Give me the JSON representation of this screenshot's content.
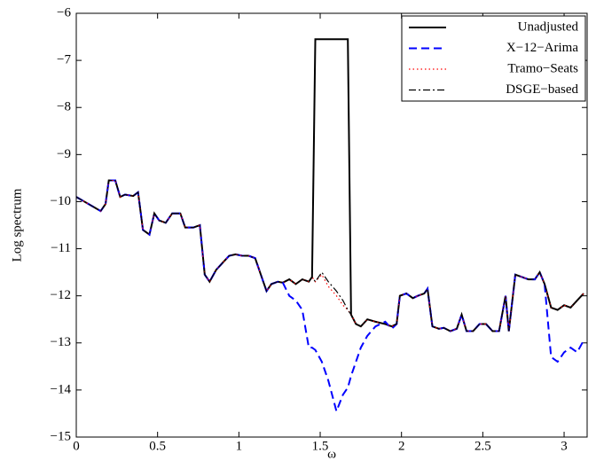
{
  "chart_data": {
    "type": "line",
    "xlabel": "ω",
    "ylabel": "Log spectrum",
    "xlim": [
      0,
      3.1416
    ],
    "ylim": [
      -15,
      -6
    ],
    "xticks": [
      0,
      0.5,
      1,
      1.5,
      2,
      2.5,
      3
    ],
    "yticks": [
      {
        "value": -15,
        "label": "−15"
      },
      {
        "value": -14,
        "label": "−14"
      },
      {
        "value": -13,
        "label": "−13"
      },
      {
        "value": -12,
        "label": "−12"
      },
      {
        "value": -11,
        "label": "−11"
      },
      {
        "value": -10,
        "label": "−10"
      },
      {
        "value": -9,
        "label": "−9"
      },
      {
        "value": -8,
        "label": "−8"
      },
      {
        "value": -7,
        "label": "−7"
      },
      {
        "value": -6,
        "label": "−6"
      }
    ],
    "legend": "upper right",
    "x": [
      0,
      0.05,
      0.1,
      0.15,
      0.18,
      0.2,
      0.24,
      0.27,
      0.3,
      0.35,
      0.38,
      0.41,
      0.45,
      0.48,
      0.51,
      0.55,
      0.59,
      0.64,
      0.67,
      0.72,
      0.76,
      0.79,
      0.82,
      0.86,
      0.9,
      0.94,
      0.98,
      1.02,
      1.06,
      1.1,
      1.14,
      1.17,
      1.2,
      1.24,
      1.27,
      1.31,
      1.35,
      1.39,
      1.43,
      1.45,
      1.47,
      1.51,
      1.55,
      1.6,
      1.64,
      1.67,
      1.69,
      1.72,
      1.75,
      1.79,
      1.84,
      1.9,
      1.94,
      1.97,
      1.99,
      2.03,
      2.07,
      2.1,
      2.14,
      2.16,
      2.19,
      2.23,
      2.26,
      2.3,
      2.34,
      2.37,
      2.4,
      2.44,
      2.48,
      2.52,
      2.56,
      2.6,
      2.64,
      2.66,
      2.7,
      2.74,
      2.78,
      2.82,
      2.85,
      2.88,
      2.92,
      2.96,
      3.0,
      3.04,
      3.08,
      3.12
    ],
    "series": [
      {
        "name": "Unadjusted",
        "color": "#000000",
        "style": "solid",
        "values": [
          -9.9,
          -10.0,
          -10.1,
          -10.2,
          -10.05,
          -9.55,
          -9.55,
          -9.9,
          -9.85,
          -9.88,
          -9.8,
          -10.6,
          -10.7,
          -10.25,
          -10.4,
          -10.45,
          -10.25,
          -10.25,
          -10.55,
          -10.55,
          -10.5,
          -11.55,
          -11.7,
          -11.45,
          -11.3,
          -11.15,
          -11.12,
          -11.15,
          -11.15,
          -11.2,
          -11.6,
          -11.9,
          -11.75,
          -11.7,
          -11.72,
          -11.65,
          -11.75,
          -11.65,
          -11.7,
          -11.6,
          -6.55,
          -6.55,
          -6.55,
          -6.55,
          -6.55,
          -6.55,
          -12.4,
          -12.6,
          -12.65,
          -12.5,
          -12.55,
          -12.6,
          -12.65,
          -12.6,
          -12.0,
          -11.95,
          -12.05,
          -12.0,
          -11.95,
          -11.85,
          -12.65,
          -12.7,
          -12.68,
          -12.75,
          -12.7,
          -12.4,
          -12.75,
          -12.75,
          -12.6,
          -12.6,
          -12.75,
          -12.75,
          -12.0,
          -12.75,
          -11.55,
          -11.6,
          -11.65,
          -11.65,
          -11.5,
          -11.75,
          -12.25,
          -12.3,
          -12.2,
          -12.25,
          -12.1,
          -11.95
        ]
      },
      {
        "name": "X−12−Arima",
        "color": "#0000ff",
        "style": "dashed",
        "values": [
          -9.9,
          -10.0,
          -10.1,
          -10.2,
          -10.05,
          -9.55,
          -9.55,
          -9.9,
          -9.85,
          -9.88,
          -9.8,
          -10.6,
          -10.7,
          -10.25,
          -10.4,
          -10.45,
          -10.25,
          -10.25,
          -10.55,
          -10.55,
          -10.5,
          -11.55,
          -11.7,
          -11.45,
          -11.3,
          -11.15,
          -11.12,
          -11.15,
          -11.15,
          -11.2,
          -11.6,
          -11.9,
          -11.75,
          -11.7,
          -11.72,
          -12.0,
          -12.1,
          -12.3,
          -13.1,
          -13.1,
          -13.15,
          -13.4,
          -13.8,
          -14.45,
          -14.1,
          -13.95,
          -13.7,
          -13.4,
          -13.1,
          -12.85,
          -12.65,
          -12.55,
          -12.7,
          -12.6,
          -12.0,
          -11.95,
          -12.05,
          -12.0,
          -11.95,
          -11.85,
          -12.65,
          -12.7,
          -12.68,
          -12.75,
          -12.7,
          -12.4,
          -12.75,
          -12.75,
          -12.6,
          -12.6,
          -12.75,
          -12.75,
          -12.0,
          -12.75,
          -11.55,
          -11.6,
          -11.65,
          -11.65,
          -11.5,
          -11.75,
          -13.3,
          -13.4,
          -13.2,
          -13.1,
          -13.2,
          -12.95
        ]
      },
      {
        "name": "Tramo−Seats",
        "color": "#ff0000",
        "style": "dotted",
        "values": [
          -9.9,
          -10.0,
          -10.1,
          -10.2,
          -10.05,
          -9.55,
          -9.55,
          -9.9,
          -9.85,
          -9.88,
          -9.8,
          -10.6,
          -10.7,
          -10.25,
          -10.4,
          -10.45,
          -10.25,
          -10.25,
          -10.55,
          -10.55,
          -10.5,
          -11.55,
          -11.7,
          -11.45,
          -11.3,
          -11.15,
          -11.12,
          -11.15,
          -11.15,
          -11.2,
          -11.6,
          -11.9,
          -11.75,
          -11.7,
          -11.72,
          -11.65,
          -11.75,
          -11.65,
          -11.7,
          -11.6,
          -11.7,
          -11.55,
          -11.8,
          -12.0,
          -12.2,
          -12.3,
          -12.4,
          -12.6,
          -12.65,
          -12.5,
          -12.55,
          -12.6,
          -12.65,
          -12.6,
          -12.0,
          -11.95,
          -12.05,
          -12.0,
          -11.95,
          -11.85,
          -12.65,
          -12.7,
          -12.68,
          -12.75,
          -12.7,
          -12.4,
          -12.75,
          -12.75,
          -12.6,
          -12.6,
          -12.75,
          -12.75,
          -12.0,
          -12.75,
          -11.55,
          -11.6,
          -11.65,
          -11.65,
          -11.5,
          -11.75,
          -12.25,
          -12.3,
          -12.2,
          -12.25,
          -12.1,
          -11.95
        ]
      },
      {
        "name": "DSGE−based",
        "color": "#000000",
        "style": "dashdot",
        "values": [
          -9.9,
          -10.0,
          -10.1,
          -10.2,
          -10.05,
          -9.55,
          -9.55,
          -9.9,
          -9.85,
          -9.88,
          -9.8,
          -10.6,
          -10.7,
          -10.25,
          -10.4,
          -10.45,
          -10.25,
          -10.25,
          -10.55,
          -10.55,
          -10.5,
          -11.55,
          -11.7,
          -11.45,
          -11.3,
          -11.15,
          -11.12,
          -11.15,
          -11.15,
          -11.2,
          -11.6,
          -11.9,
          -11.75,
          -11.7,
          -11.72,
          -11.65,
          -11.75,
          -11.65,
          -11.7,
          -11.6,
          -11.7,
          -11.5,
          -11.7,
          -11.9,
          -12.1,
          -12.3,
          -12.4,
          -12.6,
          -12.65,
          -12.5,
          -12.55,
          -12.6,
          -12.65,
          -12.6,
          -12.0,
          -11.95,
          -12.05,
          -12.0,
          -11.95,
          -11.85,
          -12.65,
          -12.7,
          -12.68,
          -12.75,
          -12.7,
          -12.4,
          -12.75,
          -12.75,
          -12.6,
          -12.6,
          -12.75,
          -12.75,
          -12.0,
          -12.75,
          -11.55,
          -11.6,
          -11.65,
          -11.65,
          -11.5,
          -11.75,
          -12.25,
          -12.3,
          -12.2,
          -12.25,
          -12.1,
          -11.95
        ]
      }
    ]
  }
}
